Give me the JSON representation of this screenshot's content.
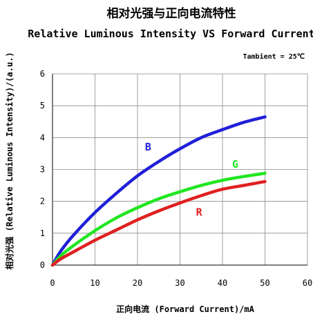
{
  "chart_data": {
    "type": "line",
    "title": "相对光强与正向电流特性",
    "subtitle": "Relative Luminous Intensity VS Forward Current",
    "annotation": "Tambient = 25℃",
    "xlabel": "正向电流 (Forward Current)/mA",
    "ylabel": "相对光强 (Relative Luminous Intensity)/(a.u.)",
    "xlim": [
      0,
      60
    ],
    "ylim": [
      0,
      6
    ],
    "xticks": [
      0,
      10,
      20,
      30,
      40,
      50,
      60
    ],
    "yticks": [
      0,
      1,
      2,
      3,
      4,
      5,
      6
    ],
    "grid": true,
    "legend": "none",
    "series": [
      {
        "name": "B",
        "color": "#2020d8",
        "x": [
          0,
          2,
          5,
          10,
          15,
          20,
          25,
          30,
          35,
          40,
          45,
          50
        ],
        "y": [
          0,
          0.45,
          0.95,
          1.65,
          2.25,
          2.8,
          3.25,
          3.65,
          4.0,
          4.25,
          4.48,
          4.65
        ]
      },
      {
        "name": "G",
        "color": "#22e622",
        "x": [
          0,
          2,
          5,
          10,
          15,
          20,
          25,
          30,
          35,
          40,
          45,
          50
        ],
        "y": [
          0,
          0.3,
          0.62,
          1.08,
          1.48,
          1.8,
          2.08,
          2.3,
          2.5,
          2.66,
          2.78,
          2.88
        ]
      },
      {
        "name": "R",
        "color": "#e02020",
        "x": [
          0,
          2,
          5,
          10,
          15,
          20,
          25,
          30,
          35,
          40,
          45,
          50
        ],
        "y": [
          0,
          0.2,
          0.42,
          0.78,
          1.1,
          1.42,
          1.7,
          1.95,
          2.18,
          2.38,
          2.5,
          2.62
        ]
      }
    ],
    "series_labels": [
      {
        "text": "B",
        "x": 22.5,
        "y": 3.6
      },
      {
        "text": "G",
        "x": 43,
        "y": 3.05
      },
      {
        "text": "R",
        "x": 34.5,
        "y": 1.55
      }
    ]
  }
}
